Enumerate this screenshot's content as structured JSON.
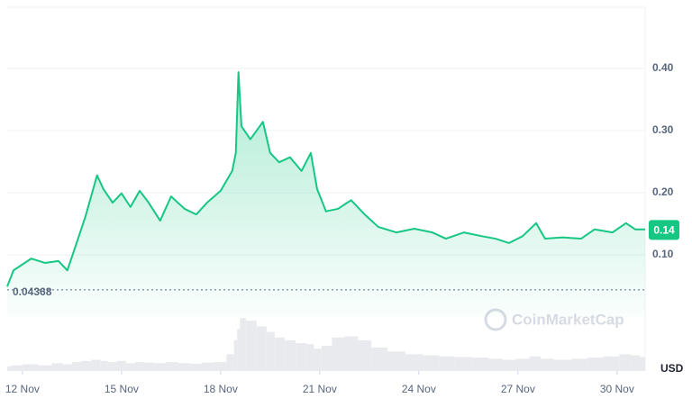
{
  "chart_data": {
    "type": "line",
    "x": [
      11.54,
      11.73,
      12.27,
      12.68,
      13.09,
      13.36,
      13.64,
      13.91,
      14.26,
      14.45,
      14.73,
      15.0,
      15.27,
      15.55,
      15.82,
      16.17,
      16.5,
      16.91,
      17.26,
      17.59,
      18.0,
      18.35,
      18.46,
      18.54,
      18.63,
      18.9,
      19.28,
      19.5,
      19.77,
      20.1,
      20.45,
      20.73,
      20.92,
      21.19,
      21.55,
      21.95,
      22.36,
      22.77,
      23.32,
      23.86,
      24.41,
      24.82,
      25.36,
      25.91,
      26.32,
      26.73,
      27.14,
      27.55,
      27.82,
      28.36,
      28.91,
      29.32,
      29.86,
      30.27,
      30.55,
      30.85
    ],
    "series": [
      {
        "color": "#16c784",
        "values": [
          0.049,
          0.075,
          0.094,
          0.087,
          0.09,
          0.075,
          0.119,
          0.162,
          0.228,
          0.206,
          0.184,
          0.199,
          0.177,
          0.203,
          0.184,
          0.155,
          0.194,
          0.174,
          0.165,
          0.184,
          0.203,
          0.235,
          0.264,
          0.394,
          0.307,
          0.286,
          0.314,
          0.264,
          0.249,
          0.257,
          0.235,
          0.264,
          0.206,
          0.17,
          0.174,
          0.188,
          0.165,
          0.145,
          0.136,
          0.142,
          0.136,
          0.126,
          0.136,
          0.13,
          0.126,
          0.119,
          0.13,
          0.151,
          0.126,
          0.128,
          0.126,
          0.141,
          0.136,
          0.151,
          0.141,
          0.141
        ]
      },
      {
        "color": "#e8eaed",
        "values": [
          8,
          10,
          12,
          10,
          14,
          12,
          16,
          18,
          20,
          18,
          16,
          18,
          14,
          16,
          15,
          14,
          16,
          14,
          13,
          15,
          16,
          30,
          55,
          75,
          95,
          90,
          80,
          70,
          60,
          55,
          50,
          48,
          40,
          45,
          60,
          62,
          55,
          42,
          35,
          30,
          28,
          26,
          25,
          24,
          22,
          20,
          22,
          26,
          22,
          20,
          22,
          24,
          26,
          30,
          28,
          25
        ]
      }
    ],
    "xlim": [
      11.54,
      30.85
    ],
    "xticks": [
      {
        "value": 12,
        "label": "12 Nov"
      },
      {
        "value": 15,
        "label": "15 Nov"
      },
      {
        "value": 18,
        "label": "18 Nov"
      },
      {
        "value": 21,
        "label": "21 Nov"
      },
      {
        "value": 24,
        "label": "24 Nov"
      },
      {
        "value": 27,
        "label": "27 Nov"
      },
      {
        "value": 30,
        "label": "30 Nov"
      }
    ],
    "ylim": [
      0,
      0.5
    ],
    "yticks": [
      {
        "value": 0.1,
        "label": "0.10"
      },
      {
        "value": 0.2,
        "label": "0.20"
      },
      {
        "value": 0.3,
        "label": "0.30"
      },
      {
        "value": 0.4,
        "label": "0.40"
      }
    ],
    "volume_lim": [
      0,
      100
    ],
    "reference_line": 0.04368,
    "last_price": 0.14,
    "currency": "USD",
    "watermark": "CoinMarketCap",
    "grid": true
  }
}
